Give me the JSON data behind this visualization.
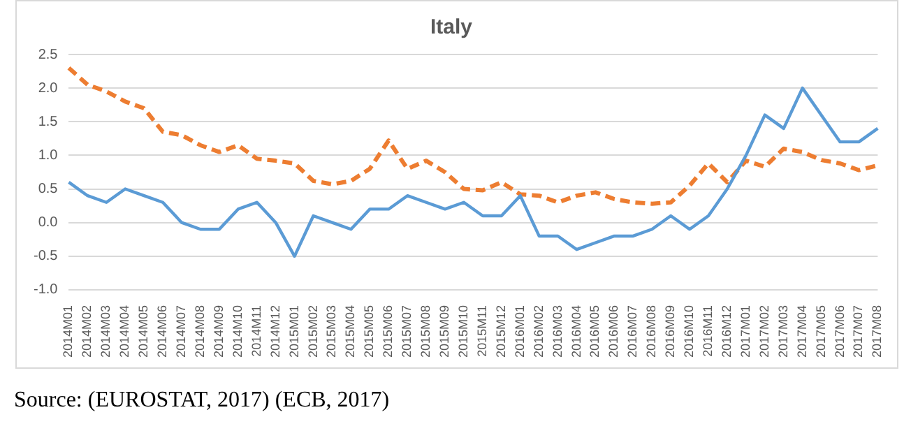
{
  "chart_data": {
    "type": "line",
    "title": "Italy",
    "categories": [
      "2014M01",
      "2014M02",
      "2014M03",
      "2014M04",
      "2014M05",
      "2014M06",
      "2014M07",
      "2014M08",
      "2014M09",
      "2014M10",
      "2014M11",
      "2014M12",
      "2015M01",
      "2015M02",
      "2015M03",
      "2015M04",
      "2015M05",
      "2015M06",
      "2015M07",
      "2015M08",
      "2015M09",
      "2015M10",
      "2015M11",
      "2015M12",
      "2016M01",
      "2016M02",
      "2016M03",
      "2016M04",
      "2016M05",
      "2016M06",
      "2016M07",
      "2016M08",
      "2016M09",
      "2016M10",
      "2016M11",
      "2016M12",
      "2017M01",
      "2017M02",
      "2017M03",
      "2017M04",
      "2017M05",
      "2017M06",
      "2017M07",
      "2017M08"
    ],
    "series": [
      {
        "color": "#5b9bd5",
        "line_style": "solid",
        "values": [
          0.6,
          0.4,
          0.3,
          0.5,
          0.4,
          0.3,
          0.0,
          -0.1,
          -0.1,
          0.2,
          0.3,
          0.0,
          -0.5,
          0.1,
          0.0,
          -0.1,
          0.2,
          0.2,
          0.4,
          0.3,
          0.2,
          0.3,
          0.1,
          0.1,
          0.4,
          -0.2,
          -0.2,
          -0.4,
          -0.3,
          -0.2,
          -0.2,
          -0.1,
          0.1,
          -0.1,
          0.1,
          0.5,
          1.0,
          1.6,
          1.4,
          2.0,
          1.6,
          1.2,
          1.2,
          1.4
        ]
      },
      {
        "color": "#ed7d31",
        "line_style": "dashed",
        "values": [
          2.3,
          2.05,
          1.95,
          1.8,
          1.7,
          1.35,
          1.3,
          1.15,
          1.05,
          1.15,
          0.95,
          0.92,
          0.88,
          0.62,
          0.57,
          0.62,
          0.8,
          1.22,
          0.8,
          0.92,
          0.75,
          0.5,
          0.48,
          0.6,
          0.42,
          0.4,
          0.3,
          0.4,
          0.45,
          0.35,
          0.3,
          0.28,
          0.3,
          0.55,
          0.88,
          0.6,
          0.92,
          0.83,
          1.1,
          1.05,
          0.93,
          0.88,
          0.78,
          0.85
        ]
      }
    ],
    "ylim": [
      -1.0,
      2.5
    ],
    "yticks": [
      {
        "value": -1,
        "label": "-1.0"
      },
      {
        "value": -0.5,
        "label": "-0.5"
      },
      {
        "value": 0,
        "label": "0.0"
      },
      {
        "value": 0.5,
        "label": "0.5"
      },
      {
        "value": 1,
        "label": "1.0"
      },
      {
        "value": 1.5,
        "label": "1.5"
      },
      {
        "value": 2,
        "label": "2.0"
      },
      {
        "value": 2.5,
        "label": "2.5"
      }
    ],
    "grid": "y",
    "legend": false,
    "marker": "none",
    "annotations": [
      "Source: (EUROSTAT, 2017) (ECB, 2017)"
    ]
  }
}
